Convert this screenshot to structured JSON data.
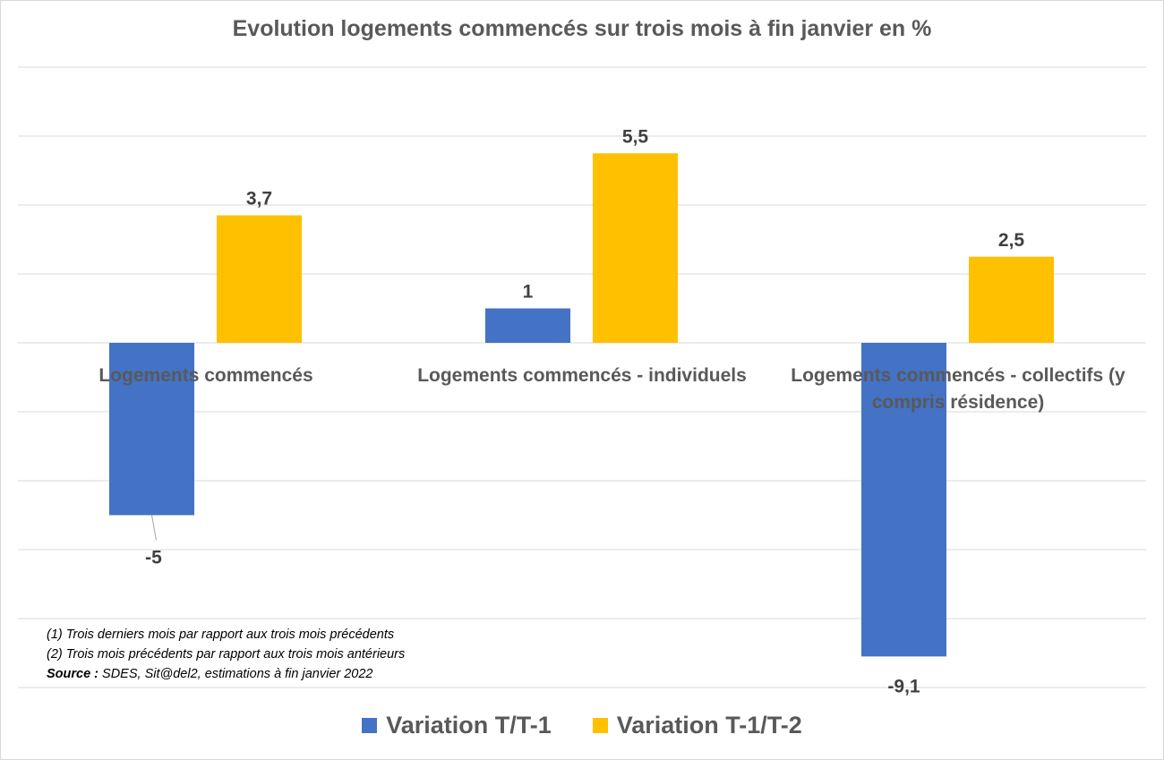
{
  "chart_data": {
    "type": "bar",
    "title": "Evolution logements commencés sur trois mois à fin janvier en %",
    "categories": [
      "Logements commencés",
      "Logements commencés - individuels",
      "Logements commencés - collectifs (y compris résidence)"
    ],
    "series": [
      {
        "name": "Variation T/T-1",
        "values": [
          -5,
          1,
          -9.1
        ],
        "labels": [
          "-5",
          "1",
          "-9,1"
        ],
        "color": "#4472C4"
      },
      {
        "name": "Variation T-1/T-2",
        "values": [
          3.7,
          5.5,
          2.5
        ],
        "labels": [
          "3,7",
          "5,5",
          "2,5"
        ],
        "color": "#FFC000"
      }
    ],
    "ylim": [
      -10,
      8
    ],
    "ytick_step": 2,
    "grid": true,
    "y_tick_labels_shown": false,
    "legend": "bottom"
  },
  "notes": {
    "line1": "(1) Trois derniers mois par rapport aux trois mois précédents",
    "line2": "(2) Trois mois précédents par rapport aux trois mois antérieurs",
    "source_label": "Source :",
    "source_text": " SDES, Sit@del2, estimations à fin janvier 2022"
  }
}
